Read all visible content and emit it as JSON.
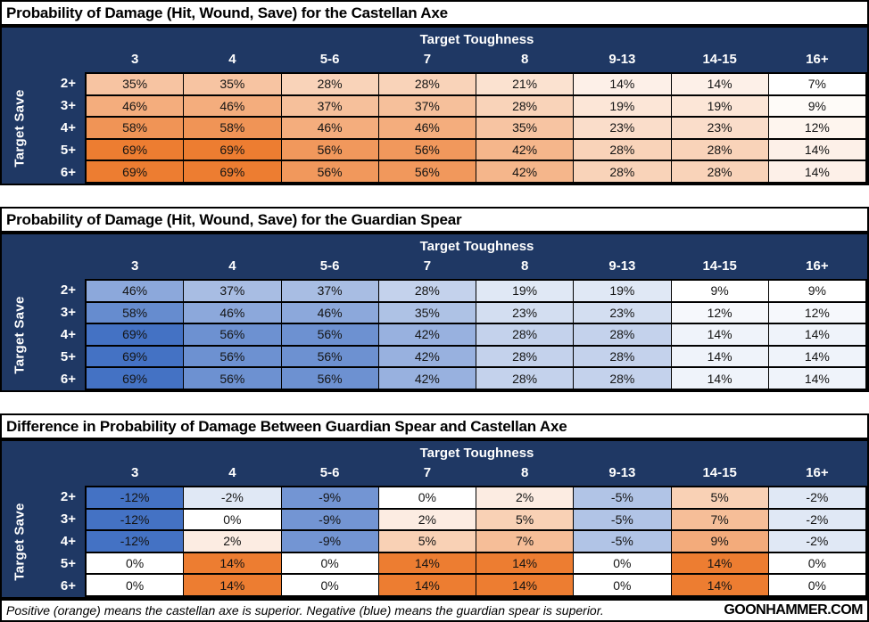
{
  "chart_data": [
    {
      "type": "heatmap",
      "title": "Probability of Damage (Hit, Wound, Save) for the Castellan Axe",
      "xlabel": "Target Toughness",
      "ylabel": "Target Save",
      "columns": [
        "3",
        "4",
        "5-6",
        "7",
        "8",
        "9-13",
        "14-15",
        "16+"
      ],
      "rows": [
        "2+",
        "3+",
        "4+",
        "5+",
        "6+"
      ],
      "value_suffix": "%",
      "values_pct": [
        [
          35,
          35,
          28,
          28,
          21,
          14,
          14,
          7
        ],
        [
          46,
          46,
          37,
          37,
          28,
          19,
          19,
          9
        ],
        [
          58,
          58,
          46,
          46,
          35,
          23,
          23,
          12
        ],
        [
          69,
          69,
          56,
          56,
          42,
          28,
          28,
          14
        ],
        [
          69,
          69,
          56,
          56,
          42,
          28,
          28,
          14
        ]
      ],
      "colorscale": {
        "kind": "sequential",
        "min_value": 7,
        "max_value": 69,
        "min_color": "#FFFFFF",
        "max_color": "#ED7D31"
      }
    },
    {
      "type": "heatmap",
      "title": "Probability of Damage (Hit, Wound, Save) for the Guardian Spear",
      "xlabel": "Target Toughness",
      "ylabel": "Target Save",
      "columns": [
        "3",
        "4",
        "5-6",
        "7",
        "8",
        "9-13",
        "14-15",
        "16+"
      ],
      "rows": [
        "2+",
        "3+",
        "4+",
        "5+",
        "6+"
      ],
      "value_suffix": "%",
      "values_pct": [
        [
          46,
          37,
          37,
          28,
          19,
          19,
          9,
          9
        ],
        [
          58,
          46,
          46,
          35,
          23,
          23,
          12,
          12
        ],
        [
          69,
          56,
          56,
          42,
          28,
          28,
          14,
          14
        ],
        [
          69,
          56,
          56,
          42,
          28,
          28,
          14,
          14
        ],
        [
          69,
          56,
          56,
          42,
          28,
          28,
          14,
          14
        ]
      ],
      "colorscale": {
        "kind": "sequential",
        "min_value": 9,
        "max_value": 69,
        "min_color": "#FFFFFF",
        "max_color": "#4472C4"
      }
    },
    {
      "type": "heatmap",
      "title": "Difference in Probability of Damage Between Guardian Spear and Castellan Axe",
      "xlabel": "Target Toughness",
      "ylabel": "Target Save",
      "columns": [
        "3",
        "4",
        "5-6",
        "7",
        "8",
        "9-13",
        "14-15",
        "16+"
      ],
      "rows": [
        "2+",
        "3+",
        "4+",
        "5+",
        "6+"
      ],
      "value_suffix": "%",
      "values_pct": [
        [
          -12,
          -2,
          -9,
          0,
          2,
          -5,
          5,
          -2
        ],
        [
          -12,
          0,
          -9,
          2,
          5,
          -5,
          7,
          -2
        ],
        [
          -12,
          2,
          -9,
          5,
          7,
          -5,
          9,
          -2
        ],
        [
          0,
          14,
          0,
          14,
          14,
          0,
          14,
          0
        ],
        [
          0,
          14,
          0,
          14,
          14,
          0,
          14,
          0
        ]
      ],
      "colorscale": {
        "kind": "diverging",
        "min_value": -12,
        "mid_value": 0,
        "max_value": 14,
        "min_color": "#4472C4",
        "mid_color": "#FFFFFF",
        "max_color": "#ED7D31"
      }
    }
  ],
  "footer": {
    "note": "Positive (orange) means the castellan axe is superior. Negative (blue) means the guardian spear is superior.",
    "brand": "GOONHAMMER.COM"
  },
  "colors": {
    "header_navy": "#1F3864",
    "axe_orange": "#ED7D31",
    "spear_blue": "#4472C4",
    "grid_black": "#000000",
    "cell_white": "#FFFFFF"
  }
}
